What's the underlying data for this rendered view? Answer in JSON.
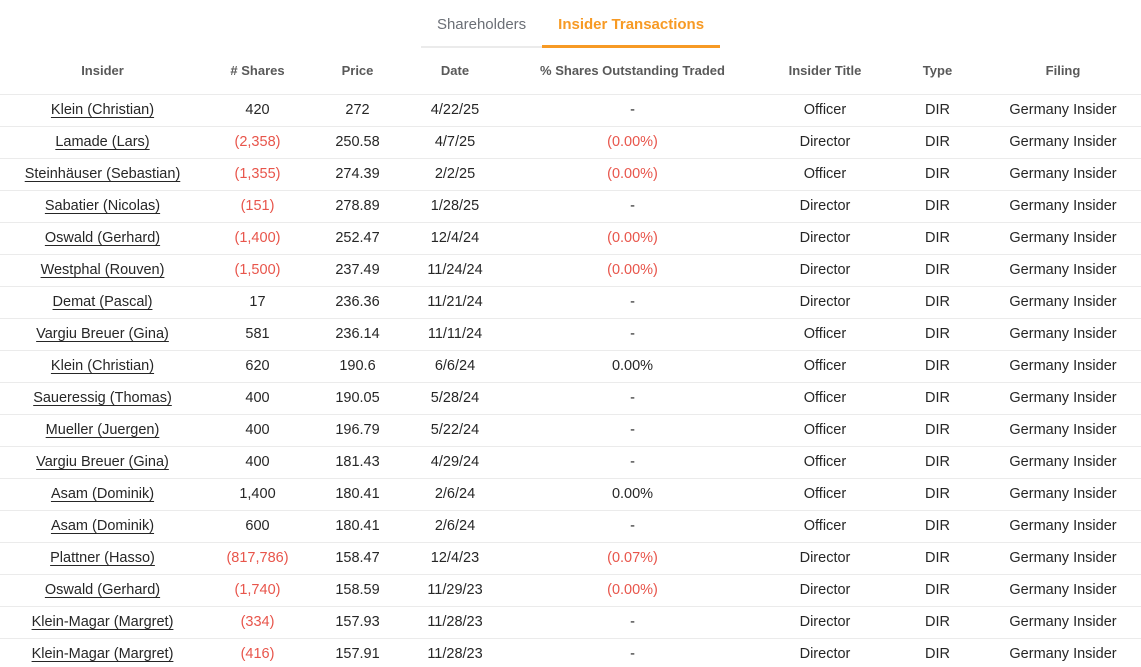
{
  "colors": {
    "accent_orange": "#F79A24",
    "negative_red": "#E8554B",
    "border_gray": "#ebebeb"
  },
  "tabs": [
    {
      "label": "Shareholders",
      "active": false
    },
    {
      "label": "Insider Transactions",
      "active": true
    }
  ],
  "table": {
    "columns": [
      "Insider",
      "# Shares",
      "Price",
      "Date",
      "% Shares Outstanding Traded",
      "Insider Title",
      "Type",
      "Filing"
    ],
    "rows": [
      {
        "insider": "Klein (Christian)",
        "shares": "420",
        "price": "272",
        "date": "4/22/25",
        "pct_outstanding": "-",
        "title": "Officer",
        "type": "DIR",
        "filing": "Germany Insider"
      },
      {
        "insider": "Lamade (Lars)",
        "shares": "(2,358)",
        "price": "250.58",
        "date": "4/7/25",
        "pct_outstanding": "(0.00%)",
        "title": "Director",
        "type": "DIR",
        "filing": "Germany Insider"
      },
      {
        "insider": "Steinhäuser (Sebastian)",
        "shares": "(1,355)",
        "price": "274.39",
        "date": "2/2/25",
        "pct_outstanding": "(0.00%)",
        "title": "Officer",
        "type": "DIR",
        "filing": "Germany Insider"
      },
      {
        "insider": "Sabatier (Nicolas)",
        "shares": "(151)",
        "price": "278.89",
        "date": "1/28/25",
        "pct_outstanding": "-",
        "title": "Director",
        "type": "DIR",
        "filing": "Germany Insider"
      },
      {
        "insider": "Oswald (Gerhard)",
        "shares": "(1,400)",
        "price": "252.47",
        "date": "12/4/24",
        "pct_outstanding": "(0.00%)",
        "title": "Director",
        "type": "DIR",
        "filing": "Germany Insider"
      },
      {
        "insider": "Westphal (Rouven)",
        "shares": "(1,500)",
        "price": "237.49",
        "date": "11/24/24",
        "pct_outstanding": "(0.00%)",
        "title": "Director",
        "type": "DIR",
        "filing": "Germany Insider"
      },
      {
        "insider": "Demat (Pascal)",
        "shares": "17",
        "price": "236.36",
        "date": "11/21/24",
        "pct_outstanding": "-",
        "title": "Director",
        "type": "DIR",
        "filing": "Germany Insider"
      },
      {
        "insider": "Vargiu Breuer (Gina)",
        "shares": "581",
        "price": "236.14",
        "date": "11/11/24",
        "pct_outstanding": "-",
        "title": "Officer",
        "type": "DIR",
        "filing": "Germany Insider"
      },
      {
        "insider": "Klein (Christian)",
        "shares": "620",
        "price": "190.6",
        "date": "6/6/24",
        "pct_outstanding": "0.00%",
        "title": "Officer",
        "type": "DIR",
        "filing": "Germany Insider"
      },
      {
        "insider": "Saueressig (Thomas)",
        "shares": "400",
        "price": "190.05",
        "date": "5/28/24",
        "pct_outstanding": "-",
        "title": "Officer",
        "type": "DIR",
        "filing": "Germany Insider"
      },
      {
        "insider": "Mueller (Juergen)",
        "shares": "400",
        "price": "196.79",
        "date": "5/22/24",
        "pct_outstanding": "-",
        "title": "Officer",
        "type": "DIR",
        "filing": "Germany Insider"
      },
      {
        "insider": "Vargiu Breuer (Gina)",
        "shares": "400",
        "price": "181.43",
        "date": "4/29/24",
        "pct_outstanding": "-",
        "title": "Officer",
        "type": "DIR",
        "filing": "Germany Insider"
      },
      {
        "insider": "Asam (Dominik)",
        "shares": "1,400",
        "price": "180.41",
        "date": "2/6/24",
        "pct_outstanding": "0.00%",
        "title": "Officer",
        "type": "DIR",
        "filing": "Germany Insider"
      },
      {
        "insider": "Asam (Dominik)",
        "shares": "600",
        "price": "180.41",
        "date": "2/6/24",
        "pct_outstanding": "-",
        "title": "Officer",
        "type": "DIR",
        "filing": "Germany Insider"
      },
      {
        "insider": "Plattner (Hasso)",
        "shares": "(817,786)",
        "price": "158.47",
        "date": "12/4/23",
        "pct_outstanding": "(0.07%)",
        "title": "Director",
        "type": "DIR",
        "filing": "Germany Insider"
      },
      {
        "insider": "Oswald (Gerhard)",
        "shares": "(1,740)",
        "price": "158.59",
        "date": "11/29/23",
        "pct_outstanding": "(0.00%)",
        "title": "Director",
        "type": "DIR",
        "filing": "Germany Insider"
      },
      {
        "insider": "Klein-Magar (Margret)",
        "shares": "(334)",
        "price": "157.93",
        "date": "11/28/23",
        "pct_outstanding": "-",
        "title": "Director",
        "type": "DIR",
        "filing": "Germany Insider"
      },
      {
        "insider": "Klein-Magar (Margret)",
        "shares": "(416)",
        "price": "157.91",
        "date": "11/28/23",
        "pct_outstanding": "-",
        "title": "Director",
        "type": "DIR",
        "filing": "Germany Insider"
      }
    ]
  }
}
